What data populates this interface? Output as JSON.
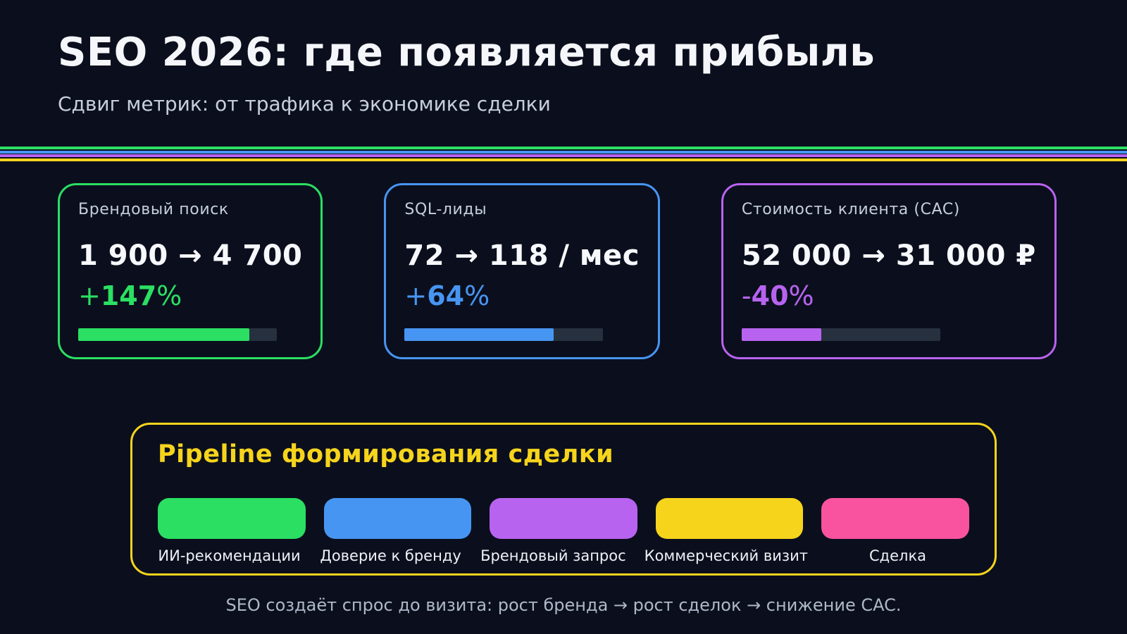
{
  "page": {
    "title": "SEO 2026: где появляется прибыль",
    "subtitle": "Сдвиг метрик: от трафика к экономике сделки",
    "footer": "SEO создаёт спрос до визита: рост бренда → рост сделок → снижение CAC."
  },
  "colors": {
    "background": "#0b0f1d",
    "green": "#2bdf62",
    "blue": "#4795f2",
    "purple": "#b863f0",
    "yellow": "#f6d41c",
    "pink": "#f9539f",
    "track": "#27303f"
  },
  "separator_stripes": [
    {
      "name": "green",
      "color": "#2bdf62"
    },
    {
      "name": "blue",
      "color": "#4795f2"
    },
    {
      "name": "purple",
      "color": "#b863f0"
    },
    {
      "name": "yellow",
      "color": "#f6d41c"
    }
  ],
  "metric_cards": [
    {
      "label": "Брендовый поиск",
      "value": "1 900 → 4 700",
      "delta_sign": "+",
      "delta_value": "147",
      "delta_suffix": "%",
      "progress_percent": 86,
      "accent": "#2bdf62"
    },
    {
      "label": "SQL-лиды",
      "value": "72 → 118 / мес",
      "delta_sign": "+",
      "delta_value": "64",
      "delta_suffix": "%",
      "progress_percent": 75,
      "accent": "#4795f2"
    },
    {
      "label": "Стоимость клиента (CAC)",
      "value": "52 000 → 31 000 ₽",
      "delta_sign": "-",
      "delta_value": "40",
      "delta_suffix": "%",
      "progress_percent": 40,
      "accent": "#b863f0"
    }
  ],
  "pipeline": {
    "title": "Pipeline формирования сделки",
    "stages": [
      {
        "label": "ИИ-рекомендации",
        "color": "#2bdf62"
      },
      {
        "label": "Доверие к бренду",
        "color": "#4795f2"
      },
      {
        "label": "Брендовый запрос",
        "color": "#b863f0"
      },
      {
        "label": "Коммерческий визит",
        "color": "#f6d41c"
      },
      {
        "label": "Сделка",
        "color": "#f9539f"
      }
    ]
  }
}
